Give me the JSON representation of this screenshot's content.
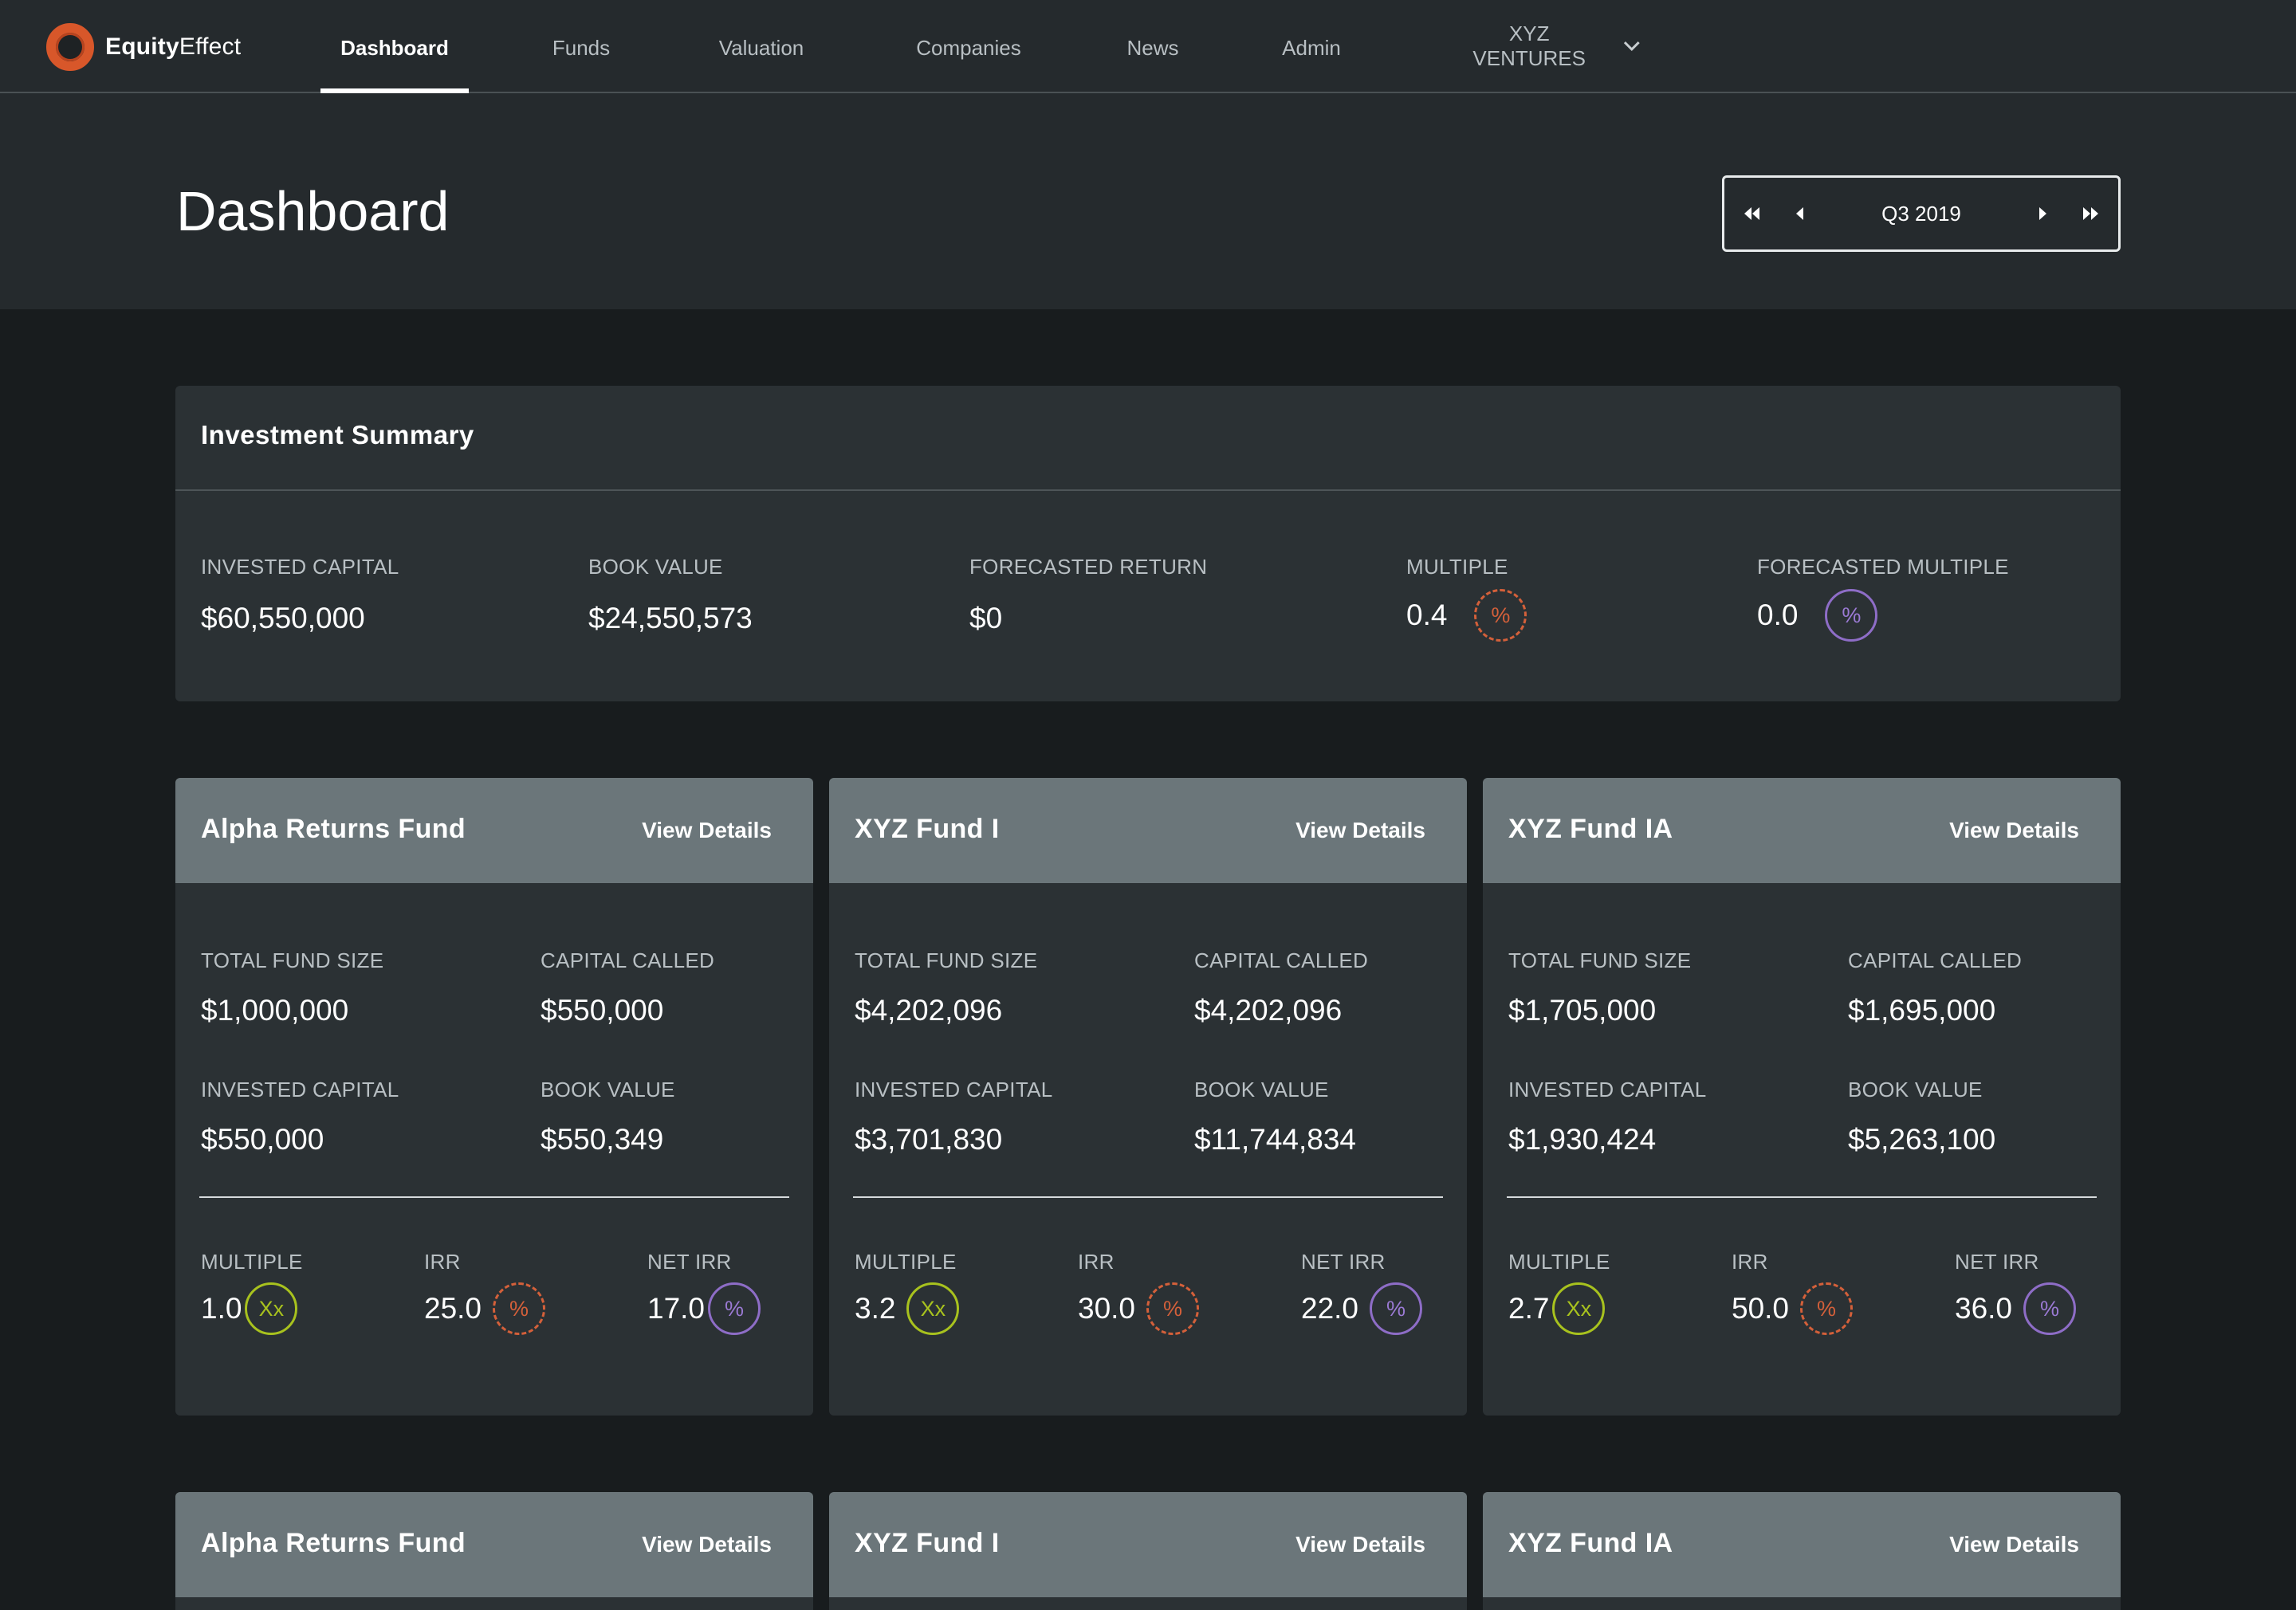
{
  "brand": {
    "bold": "Equity",
    "light": "Effect",
    "accent": "#d8572a"
  },
  "nav": {
    "items": [
      "Dashboard",
      "Funds",
      "Valuation",
      "Companies",
      "News",
      "Admin"
    ],
    "active": "Dashboard",
    "org": "XYZ VENTURES",
    "org_icon": "chevron-down-icon"
  },
  "header": {
    "title": "Dashboard",
    "period": "Q3 2019",
    "icons": [
      "first-period-icon",
      "prev-period-icon",
      "next-period-icon",
      "last-period-icon"
    ]
  },
  "summary": {
    "title": "Investment Summary",
    "metrics": [
      {
        "label": "INVESTED CAPITAL",
        "value": "$60,550,000"
      },
      {
        "label": "BOOK VALUE",
        "value": "$24,550,573"
      },
      {
        "label": "FORECASTED RETURN",
        "value": "$0"
      },
      {
        "label": "MULTIPLE",
        "value": "0.4",
        "badge": "%"
      },
      {
        "label": "FORECASTED MULTIPLE",
        "value": "0.0",
        "badge": "%"
      }
    ]
  },
  "funds": [
    {
      "name": "Alpha Returns Fund",
      "action": "View Details",
      "total_fund_size_label": "TOTAL FUND SIZE",
      "total_fund_size": "$1,000,000",
      "capital_called_label": "CAPITAL CALLED",
      "capital_called": "$550,000",
      "invested_capital_label": "INVESTED CAPITAL",
      "invested_capital": "$550,000",
      "book_value_label": "BOOK VALUE",
      "book_value": "$550,349",
      "multiple_label": "MULTIPLE",
      "multiple": "1.0",
      "multiple_badge": "Xx",
      "irr_label": "IRR",
      "irr": "25.0",
      "irr_badge": "%",
      "net_irr_label": "NET IRR",
      "net_irr": "17.0",
      "net_irr_badge": "%"
    },
    {
      "name": "XYZ Fund I",
      "action": "View Details",
      "total_fund_size_label": "TOTAL FUND SIZE",
      "total_fund_size": "$4,202,096",
      "capital_called_label": "CAPITAL CALLED",
      "capital_called": "$4,202,096",
      "invested_capital_label": "INVESTED CAPITAL",
      "invested_capital": "$3,701,830",
      "book_value_label": "BOOK VALUE",
      "book_value": "$11,744,834",
      "multiple_label": "MULTIPLE",
      "multiple": "3.2",
      "multiple_badge": "Xx",
      "irr_label": "IRR",
      "irr": "30.0",
      "irr_badge": "%",
      "net_irr_label": "NET IRR",
      "net_irr": "22.0",
      "net_irr_badge": "%"
    },
    {
      "name": "XYZ Fund IA",
      "action": "View Details",
      "total_fund_size_label": "TOTAL FUND SIZE",
      "total_fund_size": "$1,705,000",
      "capital_called_label": "CAPITAL CALLED",
      "capital_called": "$1,695,000",
      "invested_capital_label": "INVESTED CAPITAL",
      "invested_capital": "$1,930,424",
      "book_value_label": "BOOK VALUE",
      "book_value": "$5,263,100",
      "multiple_label": "MULTIPLE",
      "multiple": "2.7",
      "multiple_badge": "Xx",
      "irr_label": "IRR",
      "irr": "50.0",
      "irr_badge": "%",
      "net_irr_label": "NET IRR",
      "net_irr": "36.0",
      "net_irr_badge": "%"
    }
  ],
  "funds_row2": [
    {
      "name": "Alpha Returns Fund",
      "action": "View Details"
    },
    {
      "name": "XYZ Fund I",
      "action": "View Details"
    },
    {
      "name": "XYZ Fund IA",
      "action": "View Details"
    }
  ],
  "colors": {
    "multiple_badge": "#a8c21e",
    "irr_badge": "#d4603a",
    "net_irr_badge": "#8e6dc7",
    "card_header": "#6b767a",
    "panel": "#2b3134"
  }
}
